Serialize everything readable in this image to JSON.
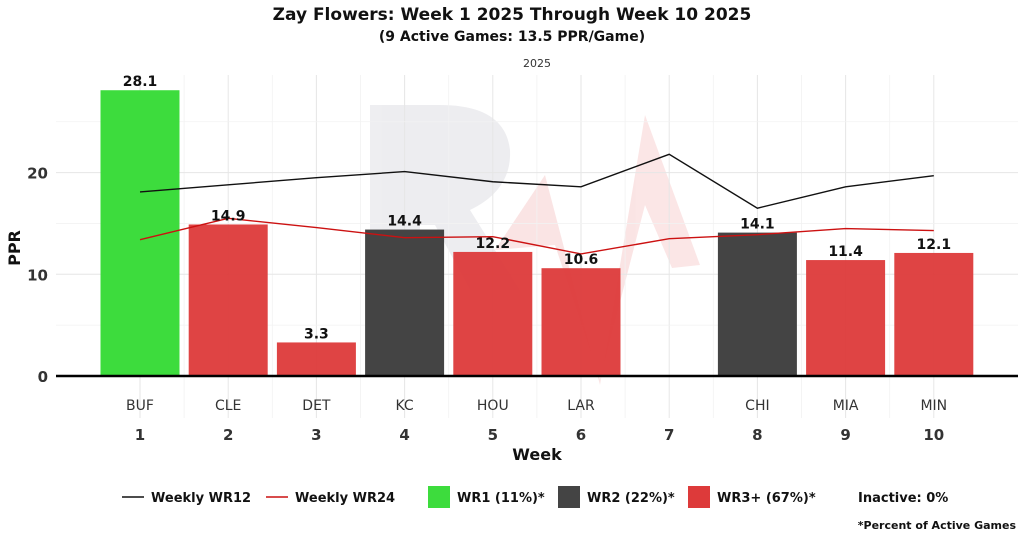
{
  "title": "Zay Flowers: Week 1 2025 Through Week 10 2025",
  "subtitle": "(9 Active Games: 13.5 PPR/Game)",
  "panel_label": "2025",
  "footnote": "*Percent of Active Games",
  "colors": {
    "wr1": "#3ddc3d",
    "wr2": "#444444",
    "wr3plus": "#dd3a3a",
    "wr12_line": "#111111",
    "wr24_line": "#cc1111"
  },
  "chart_data": {
    "type": "bar",
    "title": "Zay Flowers: Week 1 2025 Through Week 10 2025",
    "subtitle": "(9 Active Games: 13.5 PPR/Game)",
    "xlabel": "Week",
    "ylabel": "PPR",
    "ylim": [
      0,
      30
    ],
    "yticks": [
      0,
      10,
      20
    ],
    "grid": true,
    "legend_position": "bottom",
    "weeks": [
      1,
      2,
      3,
      4,
      5,
      6,
      7,
      8,
      9,
      10
    ],
    "opponents": [
      "BUF",
      "CLE",
      "DET",
      "KC",
      "HOU",
      "LAR",
      "",
      "CHI",
      "MIA",
      "MIN"
    ],
    "bars": [
      {
        "week": 1,
        "value": 28.1,
        "label": "28.1",
        "tier": "wr1"
      },
      {
        "week": 2,
        "value": 14.9,
        "label": "14.9",
        "tier": "wr3plus"
      },
      {
        "week": 3,
        "value": 3.3,
        "label": "3.3",
        "tier": "wr3plus"
      },
      {
        "week": 4,
        "value": 14.4,
        "label": "14.4",
        "tier": "wr2"
      },
      {
        "week": 5,
        "value": 12.2,
        "label": "12.2",
        "tier": "wr3plus"
      },
      {
        "week": 6,
        "value": 10.6,
        "label": "10.6",
        "tier": "wr3plus"
      },
      {
        "week": 8,
        "value": 14.1,
        "label": "14.1",
        "tier": "wr2"
      },
      {
        "week": 9,
        "value": 11.4,
        "label": "11.4",
        "tier": "wr3plus"
      },
      {
        "week": 10,
        "value": 12.1,
        "label": "12.1",
        "tier": "wr3plus"
      }
    ],
    "lines": [
      {
        "name": "Weekly WR12",
        "color": "#111111",
        "values": [
          18.1,
          18.8,
          19.5,
          20.1,
          19.1,
          18.6,
          21.8,
          16.5,
          18.6,
          19.7
        ]
      },
      {
        "name": "Weekly WR24",
        "color": "#cc1111",
        "values": [
          13.4,
          15.5,
          14.6,
          13.6,
          13.7,
          12.0,
          13.5,
          13.9,
          14.5,
          14.3
        ]
      }
    ],
    "legend": [
      {
        "kind": "line",
        "label": "Weekly WR12",
        "color": "#111111"
      },
      {
        "kind": "line",
        "label": "Weekly WR24",
        "color": "#cc1111"
      },
      {
        "kind": "box",
        "label": "WR1 (11%)*",
        "color": "#3ddc3d"
      },
      {
        "kind": "box",
        "label": "WR2 (22%)*",
        "color": "#444444"
      },
      {
        "kind": "box",
        "label": "WR3+ (67%)*",
        "color": "#dd3a3a"
      },
      {
        "kind": "text",
        "label": "Inactive: 0%"
      }
    ]
  }
}
